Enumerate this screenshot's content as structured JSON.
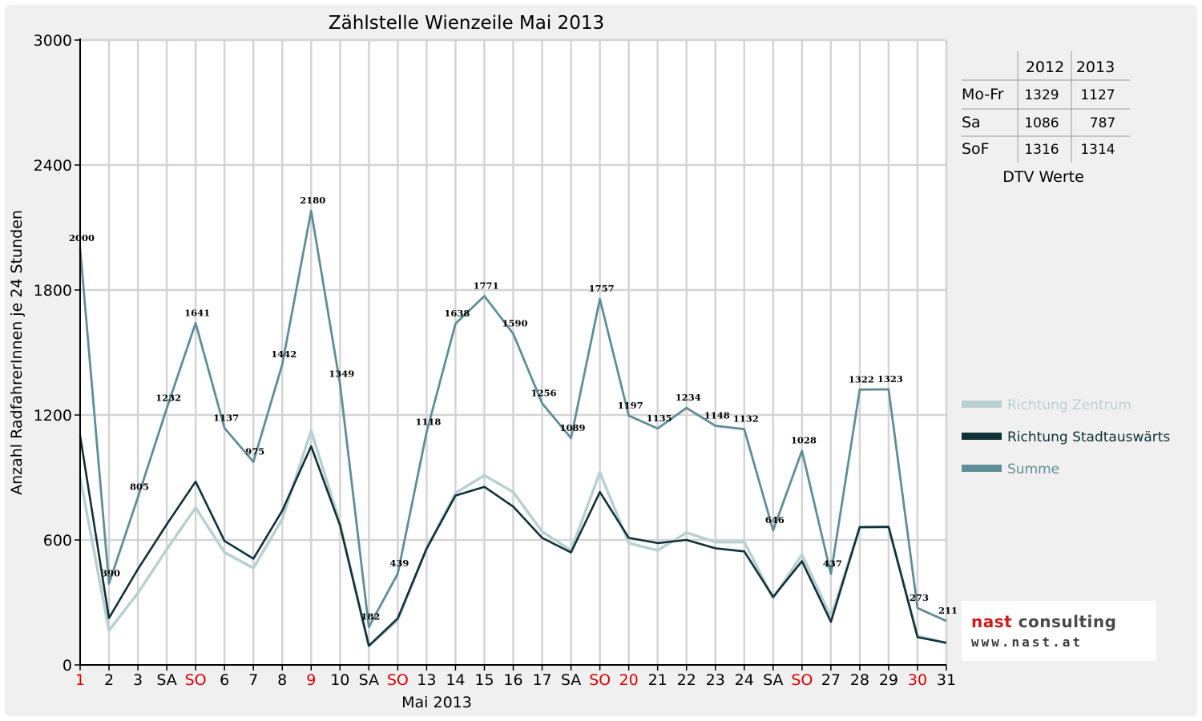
{
  "chart_data": {
    "type": "line",
    "title": "Zählstelle Wienzeile Mai 2013",
    "xlabel": "Mai 2013",
    "ylabel": "Anzahl RadfahrerInnen je 24 Stunden",
    "ylim": [
      0,
      3000
    ],
    "yticks": [
      "0",
      "600",
      "1200",
      "1800",
      "2400",
      "3000"
    ],
    "grid": true,
    "legend_position": "right",
    "categories": [
      "1",
      "2",
      "3",
      "SA",
      "SO",
      "6",
      "7",
      "8",
      "9",
      "10",
      "SA",
      "SO",
      "13",
      "14",
      "15",
      "16",
      "17",
      "SA",
      "SO",
      "20",
      "21",
      "22",
      "23",
      "24",
      "SA",
      "SO",
      "27",
      "28",
      "29",
      "30",
      "31"
    ],
    "red_categories": [
      0,
      4,
      8,
      11,
      18,
      19,
      25,
      29
    ],
    "series": [
      {
        "name": "Richtung Zentrum",
        "color": "#b9d0d3",
        "values": [
          900,
          165,
          345,
          555,
          755,
          540,
          465,
          700,
          1125,
          680,
          90,
          215,
          560,
          825,
          910,
          830,
          640,
          550,
          925,
          585,
          550,
          635,
          590,
          590,
          320,
          530,
          230,
          660,
          660,
          140,
          105
        ]
      },
      {
        "name": "Richtung Stadtauswärts",
        "color": "#0f3138",
        "values": [
          1100,
          225,
          460,
          675,
          880,
          595,
          510,
          740,
          1050,
          670,
          92,
          224,
          558,
          813,
          855,
          760,
          610,
          540,
          830,
          610,
          585,
          600,
          560,
          545,
          326,
          498,
          207,
          662,
          663,
          133,
          106
        ]
      },
      {
        "name": "Summe",
        "color": "#5f8e97",
        "values": [
          2000,
          390,
          805,
          1232,
          1641,
          1137,
          975,
          1442,
          2180,
          1349,
          182,
          439,
          1118,
          1638,
          1771,
          1590,
          1256,
          1089,
          1757,
          1197,
          1135,
          1234,
          1148,
          1132,
          646,
          1028,
          437,
          1322,
          1323,
          273,
          211
        ]
      }
    ],
    "data_labels": [
      "2000",
      "390",
      "805",
      "1232",
      "1641",
      "1137",
      "975",
      "1442",
      "2180",
      "1349",
      "182",
      "439",
      "1118",
      "1638",
      "1771",
      "1590",
      "1256",
      "1089",
      "1757",
      "1197",
      "1135",
      "1234",
      "1148",
      "1132",
      "646",
      "1028",
      "437",
      "1322",
      "1323",
      "273",
      "211"
    ]
  },
  "dtv_table": {
    "headers": [
      "",
      "2012",
      "2013"
    ],
    "rows": [
      {
        "label": "Mo-Fr",
        "v2012": "1329",
        "v2013": "1127"
      },
      {
        "label": "Sa",
        "v2012": "1086",
        "v2013": "787"
      },
      {
        "label": "SoF",
        "v2012": "1316",
        "v2013": "1314"
      }
    ],
    "caption": "DTV Werte"
  },
  "logo": {
    "line1_a": "nast",
    "line1_b": " consulting",
    "line2": "www.nast.at"
  }
}
